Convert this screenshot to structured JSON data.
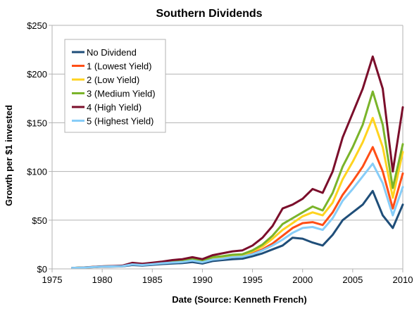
{
  "chart_data": {
    "type": "line",
    "title": "Southern Dividends",
    "xlabel": "Date (Source: Kenneth French)",
    "ylabel": "Growth per $1 invested",
    "xlim": [
      1975,
      2010
    ],
    "ylim": [
      0,
      250
    ],
    "x_ticks": [
      1975,
      1980,
      1985,
      1990,
      1995,
      2000,
      2005,
      2010
    ],
    "y_ticks": [
      0,
      50,
      100,
      150,
      200,
      250
    ],
    "x_tick_labels": [
      "1975",
      "1980",
      "1985",
      "1990",
      "1995",
      "2000",
      "2005",
      "2010"
    ],
    "y_tick_labels": [
      "$0",
      "$50",
      "$100",
      "$150",
      "$200",
      "$250"
    ],
    "grid": "horizontal",
    "legend_position": "top-left",
    "x": [
      1977,
      1978,
      1979,
      1980,
      1981,
      1982,
      1983,
      1984,
      1985,
      1986,
      1987,
      1988,
      1989,
      1990,
      1991,
      1992,
      1993,
      1994,
      1995,
      1996,
      1997,
      1998,
      1999,
      2000,
      2001,
      2002,
      2003,
      2004,
      2005,
      2006,
      2007,
      2008,
      2009,
      2010
    ],
    "series": [
      {
        "name": "No Dividend",
        "color": "#1f4e79",
        "values": [
          1,
          1.3,
          1.7,
          2.2,
          2.4,
          2.6,
          4,
          3.5,
          4.2,
          5,
          5.5,
          6,
          7,
          5.5,
          8,
          9,
          10,
          10.5,
          13,
          16,
          20,
          24,
          32,
          31,
          27,
          24,
          35,
          50,
          58,
          66,
          80,
          55,
          42,
          66
        ]
      },
      {
        "name": "1 (Lowest Yield)",
        "color": "#ff4e16",
        "values": [
          1,
          1.3,
          1.8,
          2.4,
          2.6,
          2.9,
          5,
          4.2,
          5,
          6,
          7,
          7.5,
          9,
          7,
          10,
          11,
          12,
          13,
          16,
          20,
          26,
          34,
          42,
          47,
          48,
          45,
          58,
          76,
          90,
          105,
          125,
          100,
          62,
          98
        ]
      },
      {
        "name": "2 (Low Yield)",
        "color": "#ffd31f",
        "values": [
          1,
          1.4,
          1.9,
          2.5,
          2.7,
          3,
          5.5,
          4.5,
          5.5,
          6.5,
          7.5,
          8,
          10,
          8,
          11,
          12,
          13.5,
          14,
          18,
          23,
          31,
          40,
          47,
          54,
          58,
          55,
          68,
          92,
          110,
          130,
          155,
          125,
          73,
          120
        ]
      },
      {
        "name": "3 (Medium Yield)",
        "color": "#7ab42a",
        "values": [
          1,
          1.4,
          1.9,
          2.5,
          2.8,
          3.1,
          5.8,
          4.8,
          5.8,
          6.8,
          8,
          8.5,
          10.5,
          8.5,
          12,
          13,
          14.5,
          15,
          19,
          25,
          34,
          46,
          52,
          58,
          64,
          60,
          78,
          105,
          125,
          148,
          182,
          148,
          83,
          128
        ]
      },
      {
        "name": "4 (High Yield)",
        "color": "#7b0e2b",
        "values": [
          1,
          1.4,
          2,
          2.6,
          2.9,
          3.3,
          6.2,
          5.2,
          6.3,
          7.5,
          9,
          10,
          12,
          10,
          14,
          16,
          18,
          19,
          24,
          32,
          44,
          62,
          66,
          72,
          82,
          78,
          100,
          135,
          160,
          185,
          218,
          185,
          100,
          166
        ]
      },
      {
        "name": "5 (Highest Yield)",
        "color": "#87cdf8",
        "values": [
          1,
          1.3,
          1.8,
          2.3,
          2.5,
          2.8,
          4.6,
          4,
          4.8,
          5.8,
          6.5,
          7,
          8.5,
          6.8,
          9.5,
          10.5,
          12,
          12.5,
          15,
          19,
          24,
          30,
          37,
          42,
          43,
          40,
          52,
          70,
          82,
          95,
          108,
          88,
          55,
          84
        ]
      }
    ]
  }
}
